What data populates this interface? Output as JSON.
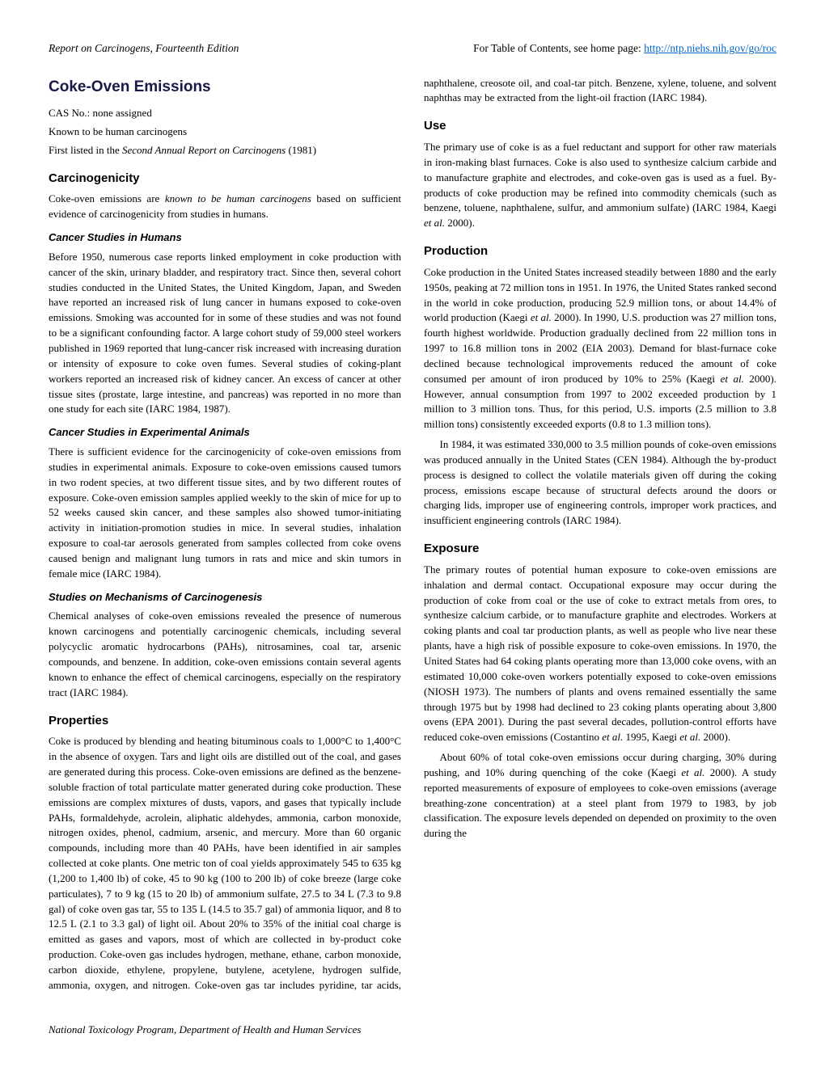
{
  "header": {
    "left": "Report on Carcinogens, Fourteenth Edition",
    "right_prefix": "For Table of Contents, see home page: ",
    "right_link": "http://ntp.niehs.nih.gov/go/roc"
  },
  "title": "Coke-Oven Emissions",
  "meta": {
    "cas": "CAS No.: none assigned",
    "known": "Known to be human carcinogens",
    "first_listed_prefix": "First listed in the ",
    "first_listed_italic": "Second Annual Report on Carcinogens",
    "first_listed_suffix": " (1981)"
  },
  "sections": {
    "carcinogenicity": {
      "heading": "Carcinogenicity",
      "intro_a": "Coke-oven emissions are ",
      "intro_i": "known to be human carcinogens",
      "intro_b": " based on sufficient evidence of carcinogenicity from studies in humans.",
      "sub1": {
        "heading": "Cancer Studies in Humans",
        "p1": "Before 1950, numerous case reports linked employment in coke production with cancer of the skin, urinary bladder, and respiratory tract. Since then, several cohort studies conducted in the United States, the United Kingdom, Japan, and Sweden have reported an increased risk of lung cancer in humans exposed to coke-oven emissions. Smoking was accounted for in some of these studies and was not found to be a significant confounding factor. A large cohort study of 59,000 steel workers published in 1969 reported that lung-cancer risk increased with increasing duration or intensity of exposure to coke oven fumes. Several studies of coking-plant workers reported an increased risk of kidney cancer. An excess of cancer at other tissue sites (prostate, large intestine, and pancreas) was reported in no more than one study for each site (IARC 1984, 1987)."
      },
      "sub2": {
        "heading": "Cancer Studies in Experimental Animals",
        "p1": "There is sufficient evidence for the carcinogenicity of coke-oven emissions from studies in experimental animals. Exposure to coke-oven emissions caused tumors in two rodent species, at two different tissue sites, and by two different routes of exposure. Coke-oven emission samples applied weekly to the skin of mice for up to 52 weeks caused skin cancer, and these samples also showed tumor-initiating activity in initiation-promotion studies in mice. In several studies, inhalation exposure to coal-tar aerosols generated from samples collected from coke ovens caused benign and malignant lung tumors in rats and mice and skin tumors in female mice (IARC 1984)."
      },
      "sub3": {
        "heading": "Studies on Mechanisms of Carcinogenesis",
        "p1": "Chemical analyses of coke-oven emissions revealed the presence of numerous known carcinogens and potentially carcinogenic chemicals, including several polycyclic aromatic hydrocarbons (PAHs), nitrosamines, coal tar, arsenic compounds, and benzene. In addition, coke-oven emissions contain several agents known to enhance the effect of chemical carcinogens, especially on the respiratory tract (IARC 1984)."
      }
    },
    "properties": {
      "heading": "Properties",
      "p1": "Coke is produced by blending and heating bituminous coals to 1,000°C to 1,400°C in the absence of oxygen. Tars and light oils are distilled out of the coal, and gases are generated during this process. Coke-oven emissions are defined as the benzene-soluble fraction of total particulate matter generated during coke production. These emissions are complex mixtures of dusts, vapors, and gases that typically include PAHs, formaldehyde, acrolein, aliphatic aldehydes, ammonia, carbon monoxide, nitrogen oxides, phenol, cadmium, arsenic, and mercury. More than 60 organic compounds, including more than 40 PAHs, have been identified in air samples collected at coke plants. One metric ton of coal yields approximately 545 to 635 kg (1,200 to 1,400 lb) of coke, 45 to 90 kg (100 to 200 lb) of coke breeze (large coke particulates), 7 to 9 kg (15 to 20 lb) of ammonium sulfate, 27.5 to 34 L (7.3 to 9.8 gal) of coke oven gas tar, 55 to 135 L (14.5 to 35.7 gal) of ammonia liquor, and 8 to 12.5 L (2.1 to 3.3 gal) of light oil. About 20% to 35% of the initial coal charge is emitted as gases and vapors, most of which are collected in by-product coke production. Coke-oven gas includes hydrogen, methane, ethane, carbon monoxide, carbon dioxide, ethylene, propylene, butylene, acetylene, hydrogen sulfide, ammonia, oxygen, and nitrogen. Coke-oven gas tar includes pyridine, tar acids, naphthalene, creosote oil, and coal-tar pitch. Benzene, xylene, toluene, and solvent naphthas may be extracted from the light-oil fraction (IARC 1984)."
    },
    "use": {
      "heading": "Use",
      "p1": "The primary use of coke is as a fuel reductant and support for other raw materials in iron-making blast furnaces. Coke is also used to synthesize calcium carbide and to manufacture graphite and electrodes, and coke-oven gas is used as a fuel. By-products of coke production may be refined into commodity chemicals (such as benzene, toluene, naphthalene, sulfur, and ammonium sulfate) (IARC 1984, Kaegi ",
      "p1_i": "et al.",
      "p1_b": " 2000)."
    },
    "production": {
      "heading": "Production",
      "p1a": "Coke production in the United States increased steadily between 1880 and the early 1950s, peaking at 72 million tons in 1951. In 1976, the United States ranked second in the world in coke production, producing 52.9 million tons, or about 14.4% of world production (Kaegi ",
      "p1i1": "et al.",
      "p1b": " 2000). In 1990, U.S. production was 27 million tons, fourth highest worldwide. Production gradually declined from 22 million tons in 1997 to 16.8 million tons in 2002 (EIA 2003). Demand for blast-furnace coke declined because technological improvements reduced the amount of coke consumed per amount of iron produced by 10% to 25% (Kaegi ",
      "p1i2": "et al.",
      "p1c": " 2000). However, annual consumption from 1997 to 2002 exceeded production by 1 million to 3 million tons. Thus, for this period, U.S. imports (2.5 million to 3.8 million tons) consistently exceeded exports (0.8 to 1.3 million tons).",
      "p2": "In 1984, it was estimated 330,000 to 3.5 million pounds of coke-oven emissions was produced annually in the United States (CEN 1984). Although the by-product process is designed to collect the volatile materials given off during the coking process, emissions escape because of structural defects around the doors or charging lids, improper use of engineering controls, improper work practices, and insufficient engineering controls (IARC 1984)."
    },
    "exposure": {
      "heading": "Exposure",
      "p1a": "The primary routes of potential human exposure to coke-oven emissions are inhalation and dermal contact. Occupational exposure may occur during the production of coke from coal or the use of coke to extract metals from ores, to synthesize calcium carbide, or to manufacture graphite and electrodes. Workers at coking plants and coal tar production plants, as well as people who live near these plants, have a high risk of possible exposure to coke-oven emissions. In 1970, the United States had 64 coking plants operating more than 13,000 coke ovens, with an estimated 10,000 coke-oven workers potentially exposed to coke-oven emissions (NIOSH 1973). The numbers of plants and ovens remained essentially the same through 1975 but by 1998 had declined to 23 coking plants operating about 3,800 ovens (EPA 2001). During the past several decades, pollution-control efforts have reduced coke-oven emissions (Costantino ",
      "p1i1": "et al.",
      "p1b": " 1995, Kaegi ",
      "p1i2": "et al.",
      "p1c": " 2000).",
      "p2a": "About 60% of total coke-oven emissions occur during charging, 30% during pushing, and 10% during quenching of the coke (Kaegi ",
      "p2i": "et al.",
      "p2b": " 2000). A study reported measurements of exposure of employees to coke-oven emissions (average breathing-zone concentration) at a steel plant from 1979 to 1983, by job classification. The exposure levels depended on depended on proximity to the oven during the"
    }
  },
  "footer": "National Toxicology Program, Department of Health and Human Services"
}
